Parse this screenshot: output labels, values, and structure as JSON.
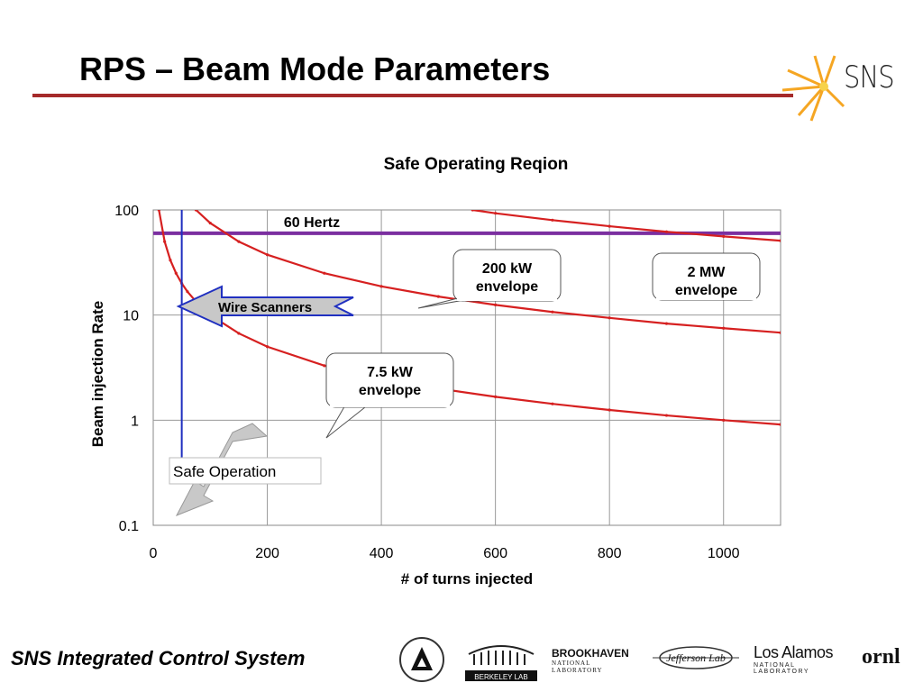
{
  "slide": {
    "title": "RPS – Beam Mode Parameters",
    "footer": "SNS Integrated Control System",
    "logo_text": "SNS",
    "accent_color": "#a52a2a",
    "labs": [
      "BROOKHAVEN",
      "NATIONAL LABORATORY",
      "BERKELEY LAB",
      "Los Alamos",
      "NATIONAL LABORATORY",
      "ornl",
      "Jefferson Lab"
    ]
  },
  "chart_data": {
    "type": "line",
    "title": "Safe Operating Reqion",
    "xlabel": "# of turns injected",
    "ylabel": "Beam injection Rate",
    "xlim": [
      0,
      1100
    ],
    "ylim": [
      0.1,
      100
    ],
    "yscale": "log",
    "xticks": [
      "0",
      "200",
      "400",
      "600",
      "800",
      "1000"
    ],
    "xtick_values": [
      0,
      200,
      400,
      600,
      800,
      1000
    ],
    "yticks": [
      "0.1",
      "1",
      "10",
      "100"
    ],
    "ytick_values": [
      0.1,
      1,
      10,
      100
    ],
    "grid": true,
    "series": [
      {
        "name": "60 Hertz",
        "color": "#7b2fa0",
        "x": [
          0,
          1100
        ],
        "y": [
          60,
          60
        ]
      },
      {
        "name": "7.5 kW envelope",
        "color": "#d62020",
        "x": [
          10,
          20,
          30,
          40,
          50,
          60,
          80,
          100,
          150,
          200,
          300,
          400,
          500,
          600,
          700,
          800,
          900,
          1000,
          1100
        ],
        "y": [
          100,
          50,
          33.3,
          25,
          20,
          16.7,
          12.5,
          10,
          6.7,
          5,
          3.3,
          2.5,
          2,
          1.67,
          1.43,
          1.25,
          1.11,
          1.0,
          0.91
        ]
      },
      {
        "name": "200 kW envelope",
        "color": "#d62020",
        "x": [
          75,
          100,
          150,
          200,
          300,
          400,
          500,
          600,
          700,
          800,
          900,
          1000,
          1100
        ],
        "y": [
          100,
          75,
          50,
          37.5,
          25,
          18.75,
          15,
          12.5,
          10.7,
          9.4,
          8.3,
          7.5,
          6.8
        ]
      },
      {
        "name": "2 MW envelope",
        "color": "#d62020",
        "x": [
          560,
          600,
          700,
          800,
          900,
          1000,
          1100
        ],
        "y": [
          100,
          93,
          80,
          70,
          62,
          56,
          51
        ]
      }
    ],
    "annotations": [
      {
        "label": "60 Hertz"
      },
      {
        "label": "200 kW\nenvelope"
      },
      {
        "label": "2 MW\nenvelope"
      },
      {
        "label": "7.5 kW\nenvelope"
      },
      {
        "label": "Wire Scanners"
      },
      {
        "label": "Safe Operation"
      }
    ],
    "vertical_line": {
      "x": 50,
      "color": "#1f2fbf"
    }
  }
}
